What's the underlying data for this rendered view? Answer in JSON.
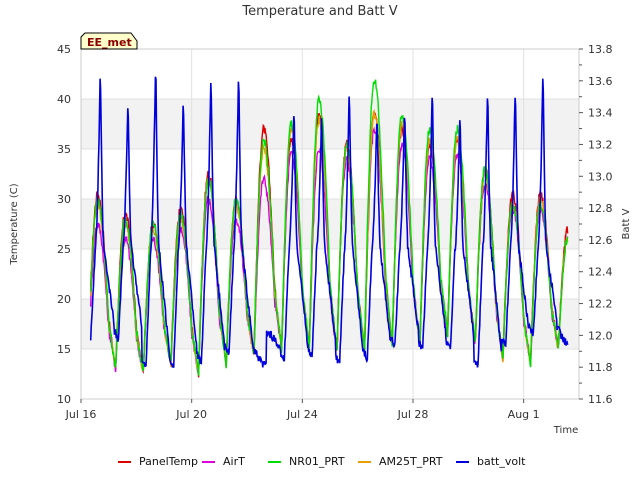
{
  "chart_data": {
    "type": "line",
    "title": "Temperature and Batt V",
    "xlabel": "Time",
    "ylabel": "Temperature (C)",
    "ylabel_right": "Batt V",
    "badge": "EE_met",
    "x_ticks": [
      "Jul 16",
      "Jul 20",
      "Jul 24",
      "Jul 28",
      "Aug 1"
    ],
    "x_tick_days": [
      0,
      4,
      8,
      12,
      16
    ],
    "x_range_days": [
      0,
      18
    ],
    "ylim": [
      10,
      45
    ],
    "y_ticks": [
      10,
      15,
      20,
      25,
      30,
      35,
      40,
      45
    ],
    "y_right_lim": [
      11.6,
      13.8
    ],
    "y_right_ticks": [
      11.6,
      11.8,
      12.0,
      12.2,
      12.4,
      12.6,
      12.8,
      13.0,
      13.2,
      13.4,
      13.6,
      13.8
    ],
    "y_right_tick_labels": [
      "11.6",
      "11.8",
      "12.0",
      "12.2",
      "12.4",
      "12.6",
      "12.8",
      "13.0",
      "13.2",
      "13.4",
      "13.6",
      "13.8"
    ],
    "shaded_bands": [
      [
        15,
        20
      ],
      [
        25,
        30
      ],
      [
        35,
        40
      ]
    ],
    "legend_position": "bottom",
    "temperature_daily": {
      "days": [
        0,
        1,
        2,
        3,
        4,
        5,
        6,
        7,
        8,
        9,
        10,
        11,
        12,
        13,
        14,
        15,
        16,
        17
      ],
      "PanelTemp_max": [
        30.5,
        28.5,
        27.5,
        29,
        32.5,
        30,
        37,
        36,
        38.5,
        35.5,
        39,
        37,
        35.5,
        36,
        33,
        30.5,
        30.5,
        27
      ],
      "AirT_max": [
        27.5,
        26,
        26,
        27,
        30,
        28,
        32,
        34.5,
        35,
        34,
        37,
        35.5,
        34,
        34.5,
        31.5,
        29,
        29,
        26
      ],
      "NR01_PRT_max": [
        30,
        28,
        27.5,
        28.5,
        32,
        30,
        36,
        37.5,
        40,
        35.5,
        42,
        38.5,
        37,
        37,
        33,
        29.5,
        29.5,
        26
      ],
      "AM25T_PRT_max": [
        29.5,
        27.5,
        27,
        28,
        32,
        29.5,
        35,
        37,
        38,
        35,
        38.5,
        37.5,
        36,
        36,
        32.5,
        29.5,
        30,
        26
      ],
      "min_temp": [
        13.5,
        13,
        12.5,
        13.5,
        12.5,
        13.5,
        14.5,
        15,
        15,
        14.5,
        15,
        15.5,
        15.5,
        16.5,
        15.5,
        14,
        13.5,
        15
      ]
    },
    "series": [
      {
        "name": "PanelTemp",
        "color": "#dd0000",
        "axis": "left"
      },
      {
        "name": "AirT",
        "color": "#dd00dd",
        "axis": "left"
      },
      {
        "name": "NR01_PRT",
        "color": "#00dd00",
        "axis": "left"
      },
      {
        "name": "AM25T_PRT",
        "color": "#e8a000",
        "axis": "left"
      },
      {
        "name": "batt_volt",
        "color": "#0000dd",
        "axis": "right",
        "peak_days": [
          0.7,
          1.7,
          2.7,
          3.7,
          4.7,
          5.7,
          7.7,
          8.7,
          9.7,
          10.7,
          11.7,
          12.7,
          13.7,
          14.7,
          15.7,
          16.7
        ],
        "peak_values": [
          13.69,
          13.52,
          13.74,
          13.52,
          13.66,
          13.68,
          13.44,
          13.42,
          13.58,
          13.42,
          13.47,
          13.57,
          13.43,
          13.58,
          13.6,
          13.69
        ],
        "min_values": [
          11.99,
          11.98,
          11.8,
          11.81,
          11.83,
          11.88,
          11.85,
          11.87,
          11.82,
          11.86,
          11.94,
          11.91,
          11.91,
          11.81,
          11.94,
          12.01
        ]
      }
    ]
  }
}
